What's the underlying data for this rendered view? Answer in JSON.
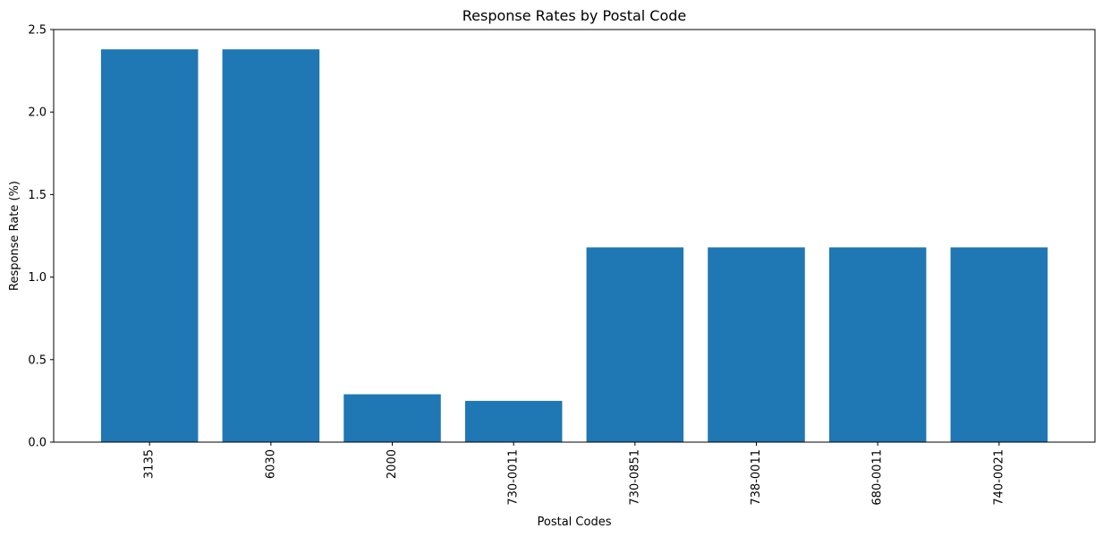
{
  "chart_data": {
    "type": "bar",
    "title": "Response Rates by Postal Code",
    "xlabel": "Postal Codes",
    "ylabel": "Response Rate (%)",
    "categories": [
      "3135",
      "6030",
      "2000",
      "730-0011",
      "730-0851",
      "738-0011",
      "680-0011",
      "740-0021"
    ],
    "values": [
      2.38,
      2.38,
      0.29,
      0.25,
      1.18,
      1.18,
      1.18,
      1.18
    ],
    "ylim": [
      0,
      2.5
    ],
    "yticks": [
      "0.0",
      "0.5",
      "1.0",
      "1.5",
      "2.0",
      "2.5"
    ],
    "ytick_values": [
      0,
      0.5,
      1.0,
      1.5,
      2.0,
      2.5
    ],
    "bar_color": "#1f77b4",
    "grid": false,
    "xtick_rotation": "vertical"
  }
}
